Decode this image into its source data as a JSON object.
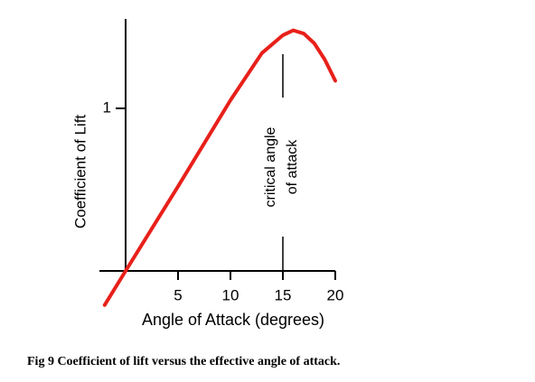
{
  "chart_data": {
    "type": "line",
    "x_label": "Angle of Attack (degrees)",
    "y_label": "Coefficient of Lift",
    "x": [
      -2,
      0,
      5,
      10,
      13,
      15,
      16,
      17,
      18,
      19,
      20
    ],
    "series": [
      {
        "color": "#e8201a",
        "values": [
          -0.21,
          0,
          0.52,
          1.05,
          1.34,
          1.45,
          1.48,
          1.46,
          1.4,
          1.3,
          1.17
        ]
      }
    ],
    "xlim": [
      -2.5,
      20
    ],
    "ylim": [
      0,
      1.55
    ],
    "xticks": [
      5,
      10,
      15,
      20
    ],
    "yticks": [
      1
    ],
    "annotation": {
      "text": [
        "critical angle",
        "of attack"
      ],
      "x": 15
    }
  },
  "caption": "Fig 9 Coefficient of lift versus the effective angle of attack."
}
